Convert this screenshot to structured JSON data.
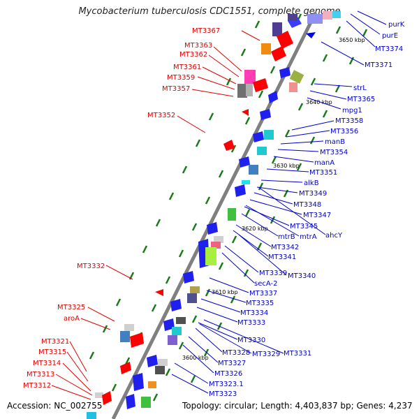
{
  "title": "Mycobacterium tuberculosis CDC1551, complete genome",
  "footer": {
    "accession": "Accession: NC_002755",
    "topology": "Topology: circular; Length: 4,403,837 bp; Genes: 4,237"
  },
  "colors": {
    "backbone": "#808080",
    "forward_label": "#e00000",
    "reverse_label": "#0000cc",
    "tick": "#1a7a1a"
  },
  "kbp_ticks": [
    "3600 kbp",
    "3610 kbp",
    "3620 kbp",
    "3630 kbp",
    "3640 kbp",
    "3650 kbp"
  ],
  "left_labels": [
    "MT3367",
    "MT3363",
    "MT3362",
    "MT3361",
    "MT3359",
    "MT3357",
    "MT3352",
    "MT3332",
    "MT3325",
    "aroA",
    "MT3321",
    "MT3315",
    "MT3314",
    "MT3313",
    "MT3312"
  ],
  "right_labels": [
    "purK",
    "purE",
    "MT3374",
    "MT3371",
    "strL",
    "MT3365",
    "mpg1",
    "MT3358",
    "MT3356",
    "manB",
    "MT3354",
    "manA",
    "MT3351",
    "alkB",
    "MT3349",
    "MT3348",
    "MT3347",
    "MT3345",
    "ahcY",
    "mtrB",
    "mtrA",
    "MT3342",
    "MT3341",
    "MT3339",
    "MT3340",
    "secA-2",
    "MT3337",
    "MT3335",
    "MT3334",
    "MT3333",
    "MT3330",
    "MT3328",
    "MT3329",
    "MT3331",
    "MT3327",
    "MT3326",
    "MT3323.1",
    "MT3323"
  ]
}
